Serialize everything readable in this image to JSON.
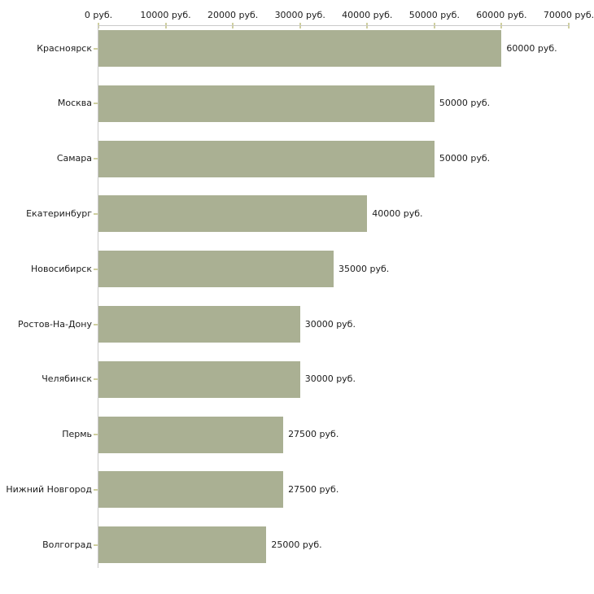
{
  "chart_data": {
    "type": "bar",
    "orientation": "horizontal",
    "title": "",
    "unit": "руб.",
    "categories": [
      "Красноярск",
      "Москва",
      "Самара",
      "Екатеринбург",
      "Новосибирск",
      "Ростов-На-Дону",
      "Челябинск",
      "Пермь",
      "Нижний Новгород",
      "Волгоград"
    ],
    "values": [
      60000,
      50000,
      50000,
      40000,
      35000,
      30000,
      30000,
      27500,
      27500,
      25000
    ],
    "value_labels": [
      "60000 руб.",
      "50000 руб.",
      "50000 руб.",
      "40000 руб.",
      "35000 руб.",
      "30000 руб.",
      "30000 руб.",
      "27500 руб.",
      "27500 руб.",
      "25000 руб."
    ],
    "x_axis": {
      "position": "top",
      "range": [
        0,
        70000
      ],
      "ticks": [
        0,
        10000,
        20000,
        30000,
        40000,
        50000,
        60000,
        70000
      ],
      "tick_labels": [
        "0 руб.",
        "10000 руб.",
        "20000 руб.",
        "30000 руб.",
        "40000 руб.",
        "50000 руб.",
        "60000 руб.",
        "70000 руб."
      ]
    },
    "grid": "off",
    "legend": "none",
    "colors": {
      "bar_fill": "#aab093",
      "axis_line": "#c9c9c9",
      "tick_mark": "#cfcf9f",
      "text": "#1c1c1c",
      "background": "#ffffff"
    }
  }
}
